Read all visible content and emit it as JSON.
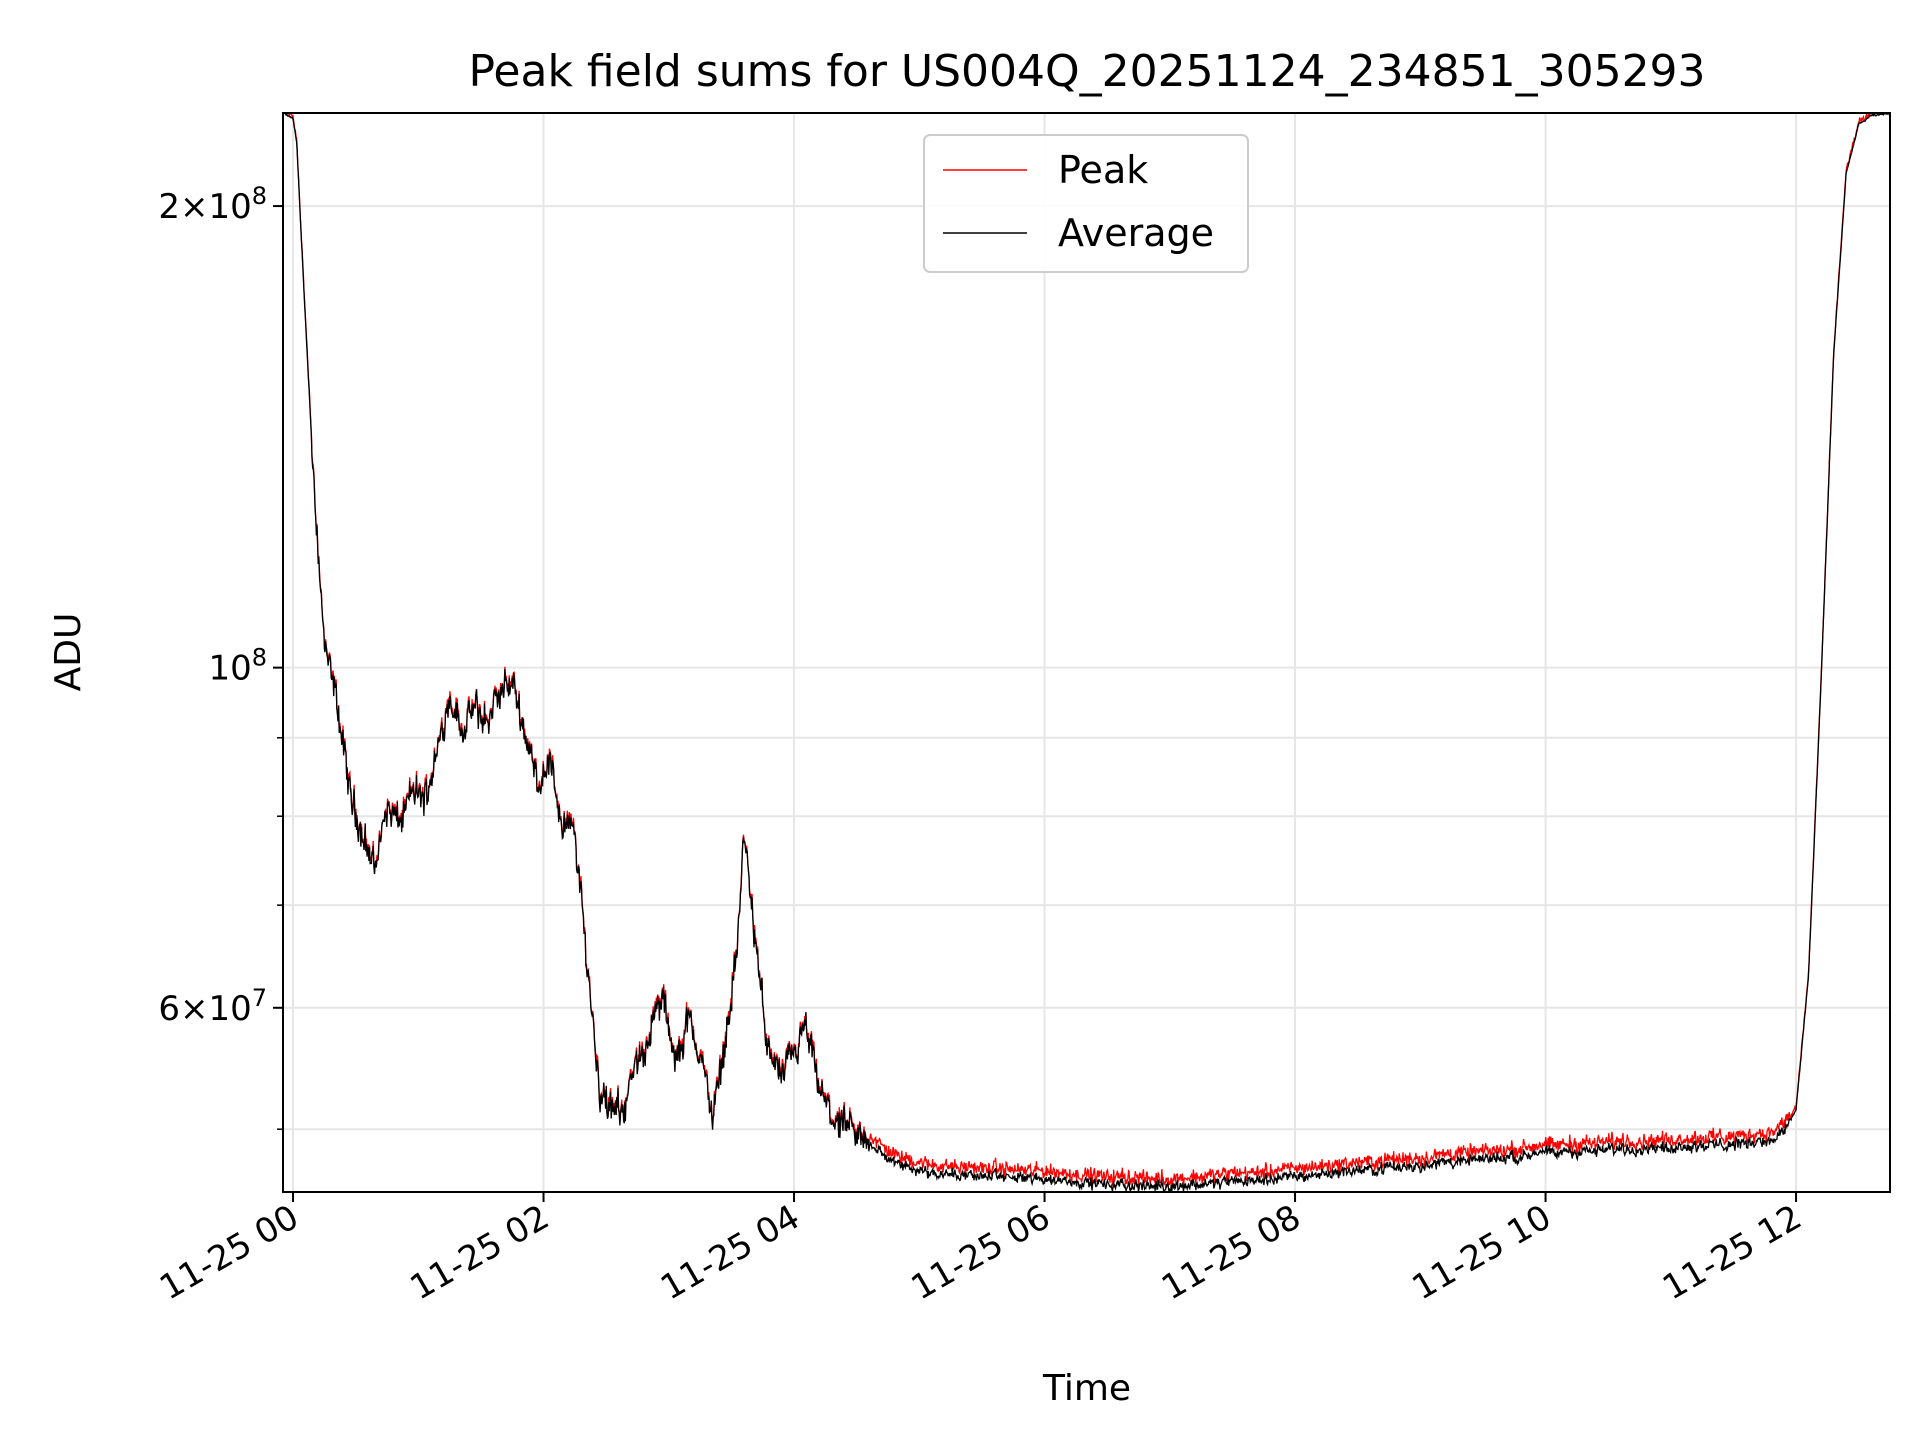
{
  "chart_data": {
    "type": "line",
    "title": "Peak field sums for US004Q_20251124_234851_305293",
    "xlabel": "Time",
    "ylabel": "ADU",
    "yscale": "log",
    "xlim_hours": [
      -0.08,
      12.75
    ],
    "ylim": [
      45500000,
      230000000
    ],
    "x_ticks": [
      {
        "hour": 0,
        "label": "11-25 00"
      },
      {
        "hour": 2,
        "label": "11-25 02"
      },
      {
        "hour": 4,
        "label": "11-25 04"
      },
      {
        "hour": 6,
        "label": "11-25 06"
      },
      {
        "hour": 8,
        "label": "11-25 08"
      },
      {
        "hour": 10,
        "label": "11-25 10"
      },
      {
        "hour": 12,
        "label": "11-25 12"
      }
    ],
    "y_major_ticks": [
      {
        "value": 60000000,
        "base": "6",
        "exp": "7"
      },
      {
        "value": 100000000,
        "base": "",
        "exp": "8"
      },
      {
        "value": 200000000,
        "base": "2",
        "exp": "8"
      }
    ],
    "y_minor_ticks": [
      50000000,
      70000000,
      80000000,
      90000000
    ],
    "grid": true,
    "legend_position": "upper center",
    "series": [
      {
        "name": "Peak",
        "color": "#ff0000"
      },
      {
        "name": "Average",
        "color": "#000000"
      }
    ],
    "trend": {
      "hours": [
        -0.08,
        0.0,
        0.03,
        0.06,
        0.1,
        0.15,
        0.2,
        0.25,
        0.35,
        0.45,
        0.55,
        0.65,
        0.75,
        0.85,
        0.95,
        1.05,
        1.15,
        1.25,
        1.35,
        1.45,
        1.55,
        1.65,
        1.75,
        1.85,
        1.95,
        2.05,
        2.15,
        2.25,
        2.35,
        2.45,
        2.55,
        2.65,
        2.75,
        2.85,
        2.95,
        3.05,
        3.15,
        3.25,
        3.35,
        3.45,
        3.55,
        3.6,
        3.7,
        3.8,
        3.9,
        4.0,
        4.1,
        4.2,
        4.3,
        4.4,
        4.5,
        4.6,
        4.8,
        5.0,
        5.2,
        5.5,
        6.0,
        6.5,
        7.0,
        7.5,
        8.0,
        8.5,
        9.0,
        9.5,
        10.0,
        10.5,
        11.0,
        11.5,
        11.8,
        11.9,
        12.0,
        12.1,
        12.2,
        12.3,
        12.4,
        12.5,
        12.6,
        12.75
      ],
      "values_adu": [
        230000000,
        228000000,
        220000000,
        195000000,
        168000000,
        140000000,
        120000000,
        103000000,
        95000000,
        83000000,
        78000000,
        74000000,
        81000000,
        79000000,
        83000000,
        82000000,
        88000000,
        96000000,
        91000000,
        94000000,
        92000000,
        96000000,
        98000000,
        91000000,
        84000000,
        87000000,
        79000000,
        78000000,
        64000000,
        53000000,
        51000000,
        52000000,
        55000000,
        58000000,
        61000000,
        55000000,
        59000000,
        56000000,
        51000000,
        57000000,
        66000000,
        78000000,
        65000000,
        56000000,
        54000000,
        56000000,
        58000000,
        53000000,
        51000000,
        50000000,
        49500000,
        49000000,
        47500000,
        47000000,
        46800000,
        46600000,
        46400000,
        46000000,
        45900000,
        46200000,
        46600000,
        47000000,
        47400000,
        47800000,
        48200000,
        48500000,
        48700000,
        48900000,
        49200000,
        49800000,
        51500000,
        63000000,
        98000000,
        160000000,
        210000000,
        226000000,
        229000000,
        230000000
      ]
    }
  }
}
